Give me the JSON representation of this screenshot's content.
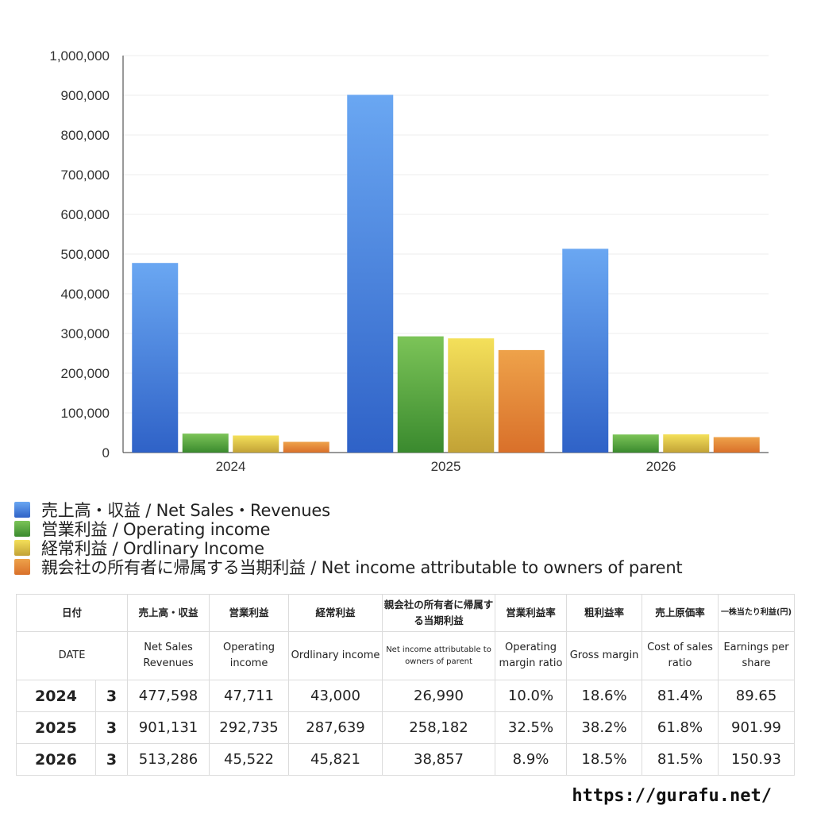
{
  "chart_data": {
    "type": "bar",
    "categories": [
      "2024",
      "2025",
      "2026"
    ],
    "ylim": [
      0,
      1000000
    ],
    "yticks": [
      "0",
      "100,000",
      "200,000",
      "300,000",
      "400,000",
      "500,000",
      "600,000",
      "700,000",
      "800,000",
      "900,000",
      "1,000,000"
    ],
    "grid": true,
    "legend_position": "bottom",
    "series": [
      {
        "name": "売上高・収益 / Net Sales・Revenues",
        "values": [
          477598,
          901131,
          513286
        ],
        "color_top": "#6aa7f2",
        "color_bottom": "#2f62c7"
      },
      {
        "name": "営業利益 / Operating income",
        "values": [
          47711,
          292735,
          45522
        ],
        "color_top": "#7cc458",
        "color_bottom": "#3a8a2e"
      },
      {
        "name": "経常利益 / Ordlinary Income",
        "values": [
          43000,
          287639,
          45821
        ],
        "color_top": "#f4e05a",
        "color_bottom": "#c2a236"
      },
      {
        "name": "親会社の所有者に帰属する当期利益 / Net income attributable to owners of parent",
        "values": [
          26990,
          258182,
          38857
        ],
        "color_top": "#eea24a",
        "color_bottom": "#d9702a"
      }
    ]
  },
  "legend": {
    "items": [
      {
        "label": "売上高・収益 / Net Sales・Revenues",
        "color": "#4a86e0"
      },
      {
        "label": "営業利益 / Operating income",
        "color": "#5aa840"
      },
      {
        "label": "経常利益 / Ordlinary Income",
        "color": "#e2c848"
      },
      {
        "label": "親会社の所有者に帰属する当期利益 / Net income attributable to owners of parent",
        "color": "#e58a3a"
      }
    ]
  },
  "table": {
    "header_jp": {
      "date": "日付",
      "sales": "売上高・収益",
      "op": "営業利益",
      "ord": "経常利益",
      "net": "親会社の所有者に帰属する当期利益",
      "opm": "営業利益率",
      "gm": "粗利益率",
      "cos": "売上原価率",
      "eps": "一株当たり利益(円)"
    },
    "header_en": {
      "date": "DATE",
      "sales": "Net Sales Revenues",
      "op": "Operating income",
      "ord": "Ordlinary income",
      "net": "Net income attributable to owners of parent",
      "opm": "Operating margin ratio",
      "gm": "Gross margin",
      "cos": "Cost of sales ratio",
      "eps": "Earnings per share"
    },
    "rows": [
      {
        "year": "2024",
        "month": "3",
        "sales": "477,598",
        "op": "47,711",
        "ord": "43,000",
        "net": "26,990",
        "opm": "10.0%",
        "gm": "18.6%",
        "cos": "81.4%",
        "eps": "89.65"
      },
      {
        "year": "2025",
        "month": "3",
        "sales": "901,131",
        "op": "292,735",
        "ord": "287,639",
        "net": "258,182",
        "opm": "32.5%",
        "gm": "38.2%",
        "cos": "61.8%",
        "eps": "901.99"
      },
      {
        "year": "2026",
        "month": "3",
        "sales": "513,286",
        "op": "45,522",
        "ord": "45,821",
        "net": "38,857",
        "opm": "8.9%",
        "gm": "18.5%",
        "cos": "81.5%",
        "eps": "150.93"
      }
    ]
  },
  "source": "https://gurafu.net/"
}
